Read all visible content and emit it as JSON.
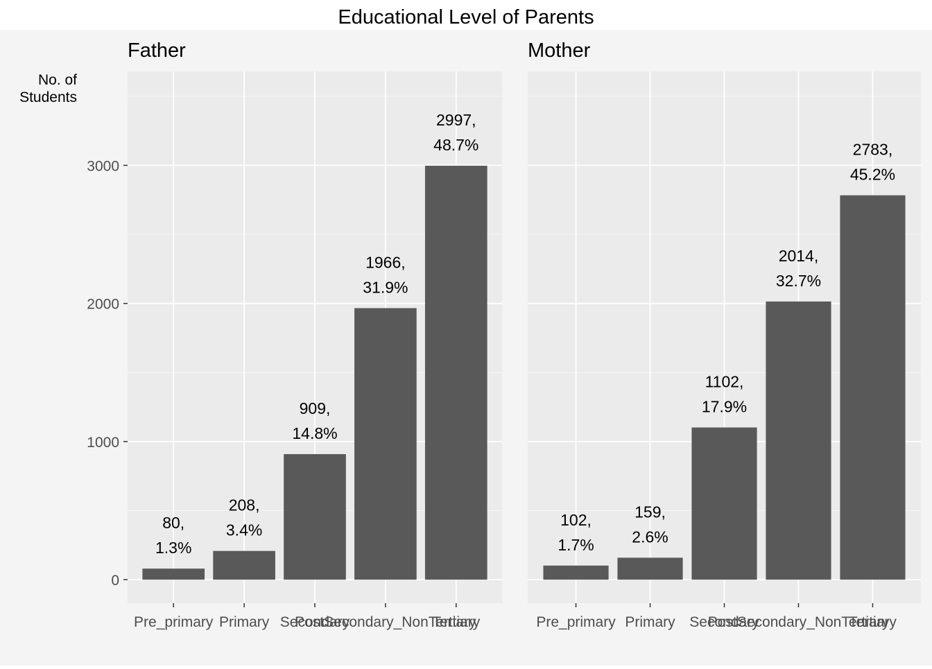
{
  "chart_data": {
    "type": "bar",
    "title": "Educational Level of Parents",
    "ylabel": "No. of Students",
    "xlabel": "",
    "ylim": [
      -170,
      3680
    ],
    "yticks": [
      0,
      1000,
      2000,
      3000
    ],
    "categories": [
      "Pre_primary",
      "Primary",
      "Secondary",
      "PostSecondary_NonTertiary",
      "Tertiary"
    ],
    "panels": [
      {
        "name": "Father",
        "values": [
          80,
          208,
          909,
          1966,
          2997
        ],
        "labels": [
          [
            "80,",
            "1.3%"
          ],
          [
            "208,",
            "3.4%"
          ],
          [
            "909,",
            "14.8%"
          ],
          [
            "1966,",
            "31.9%"
          ],
          [
            "2997,",
            "48.7%"
          ]
        ]
      },
      {
        "name": "Mother",
        "values": [
          102,
          159,
          1102,
          2014,
          2783
        ],
        "labels": [
          [
            "102,",
            "1.7%"
          ],
          [
            "159,",
            "2.6%"
          ],
          [
            "1102,",
            "17.9%"
          ],
          [
            "2014,",
            "32.7%"
          ],
          [
            "2783,",
            "45.2%"
          ]
        ]
      }
    ],
    "grid": true,
    "legend": "none"
  },
  "colors": {
    "page_background": "#f4f4f4",
    "title_strip": "#ffffff",
    "panel_background": "#ebebeb",
    "gridline": "#ffffff",
    "bar": "#595959",
    "text": "#000000",
    "tick_text": "#4d4d4d",
    "tick_mark": "#333333"
  }
}
